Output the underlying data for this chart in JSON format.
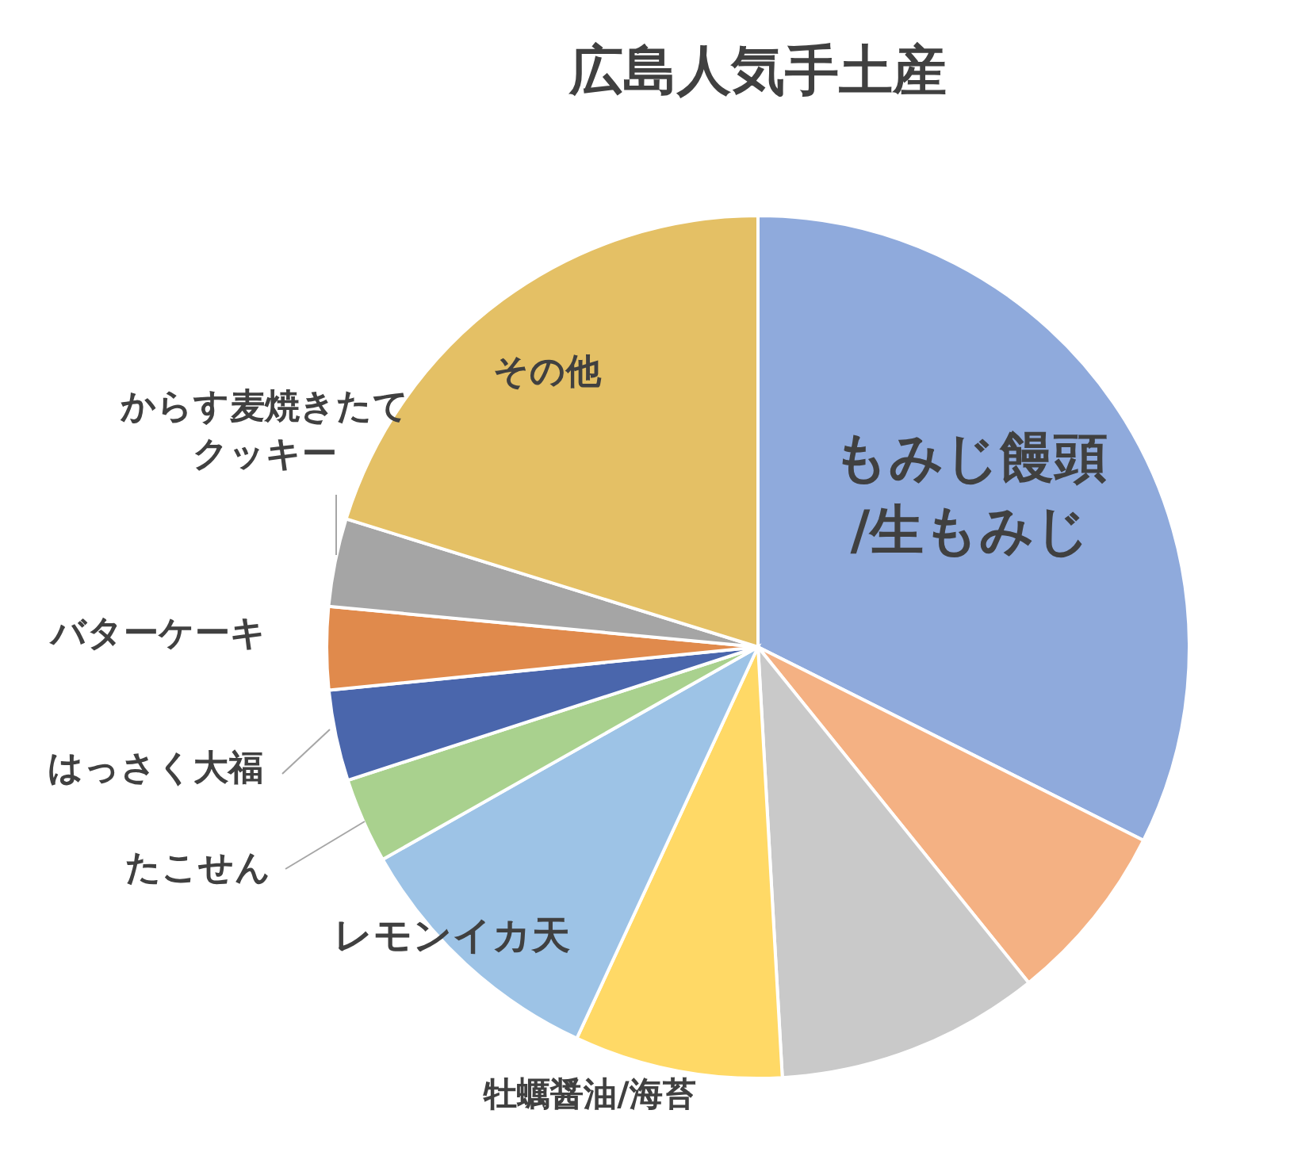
{
  "chart_data": {
    "type": "pie",
    "title": "広島人気手土産",
    "categories": [
      "もみじ饅頭/生もみじ",
      null,
      null,
      "牡蠣醤油/海苔",
      "レモンイカ天",
      "たこせん",
      "はっさく大福",
      "バターケーキ",
      "からす麦焼きたてクッキー",
      "その他"
    ],
    "values": [
      32.4,
      6.8,
      9.9,
      7.8,
      9.9,
      3.2,
      3.4,
      3.1,
      3.3,
      20.2
    ],
    "colors": [
      "#8faadc",
      "#f4b183",
      "#c9c9c9",
      "#ffd966",
      "#9dc3e6",
      "#a9d18e",
      "#4a66ac",
      "#e08a4c",
      "#a5a5a5",
      "#e4c065"
    ]
  }
}
